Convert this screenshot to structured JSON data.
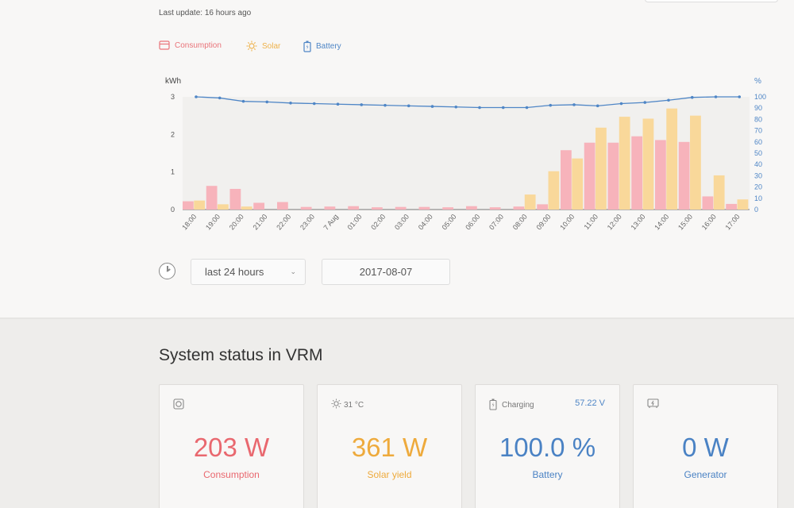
{
  "header": {
    "last_update": "Last update: 16 hours ago"
  },
  "legend": {
    "consumption": {
      "label": "Consumption",
      "icon": "outlet-icon",
      "color": "#e9747a"
    },
    "solar": {
      "label": "Solar",
      "icon": "sun-icon",
      "color": "#eeb24b"
    },
    "battery": {
      "label": "Battery",
      "icon": "battery-icon",
      "color": "#4f86c6"
    }
  },
  "controls": {
    "range": "last 24 hours",
    "date": "2017-08-07"
  },
  "status": {
    "title": "System status in VRM",
    "cards": {
      "consumption": {
        "value": "203 W",
        "caption": "Consumption",
        "icon": "outlet-icon"
      },
      "solar": {
        "value": "361 W",
        "caption": "Solar yield",
        "temperature": "31 °C",
        "icon": "sun-icon"
      },
      "battery": {
        "value": "100.0 %",
        "caption": "Battery",
        "state": "Charging",
        "voltage": "57.22 V",
        "icon": "battery-icon"
      },
      "generator": {
        "value": "0 W",
        "caption": "Generator",
        "icon": "generator-icon"
      }
    }
  },
  "chart_data": {
    "type": "bar",
    "ylabel_left": "kWh",
    "ylabel_right": "%",
    "ylim_left": [
      0,
      3
    ],
    "ylim_right": [
      0,
      100
    ],
    "yticks_left": [
      "0",
      "1",
      "2",
      "3"
    ],
    "yticks_right": [
      "0",
      "10",
      "20",
      "30",
      "40",
      "50",
      "60",
      "70",
      "80",
      "90",
      "100"
    ],
    "categories": [
      "18:00",
      "19:00",
      "20:00",
      "21:00",
      "22:00",
      "23:00",
      "7 Aug",
      "01:00",
      "02:00",
      "03:00",
      "04:00",
      "05:00",
      "06:00",
      "07:00",
      "08:00",
      "09:00",
      "10:00",
      "11:00",
      "12:00",
      "13:00",
      "14:00",
      "15:00",
      "16:00",
      "17:00"
    ],
    "series": [
      {
        "name": "Consumption",
        "axis": "left",
        "color": "#f7b3bb",
        "values": [
          0.22,
          0.63,
          0.55,
          0.18,
          0.2,
          0.07,
          0.08,
          0.09,
          0.06,
          0.07,
          0.07,
          0.06,
          0.09,
          0.06,
          0.08,
          0.14,
          1.58,
          1.78,
          1.78,
          1.95,
          1.85,
          1.8,
          0.35,
          0.15
        ]
      },
      {
        "name": "Solar",
        "axis": "left",
        "color": "#f9d89a",
        "values": [
          0.24,
          0.14,
          0.08,
          0,
          0,
          0,
          0,
          0,
          0,
          0,
          0,
          0,
          0,
          0,
          0.4,
          1.02,
          1.36,
          2.18,
          2.47,
          2.42,
          2.69,
          2.5,
          0.91,
          0.27
        ]
      },
      {
        "name": "Battery",
        "axis": "right",
        "type": "line",
        "color": "#4f86c6",
        "values": [
          100,
          99,
          96,
          95.5,
          94.5,
          94,
          93.5,
          93,
          92.5,
          92,
          91.5,
          91,
          90.5,
          90.5,
          90.5,
          92.5,
          93,
          92,
          94,
          95,
          97,
          99.5,
          100,
          100
        ]
      }
    ]
  }
}
